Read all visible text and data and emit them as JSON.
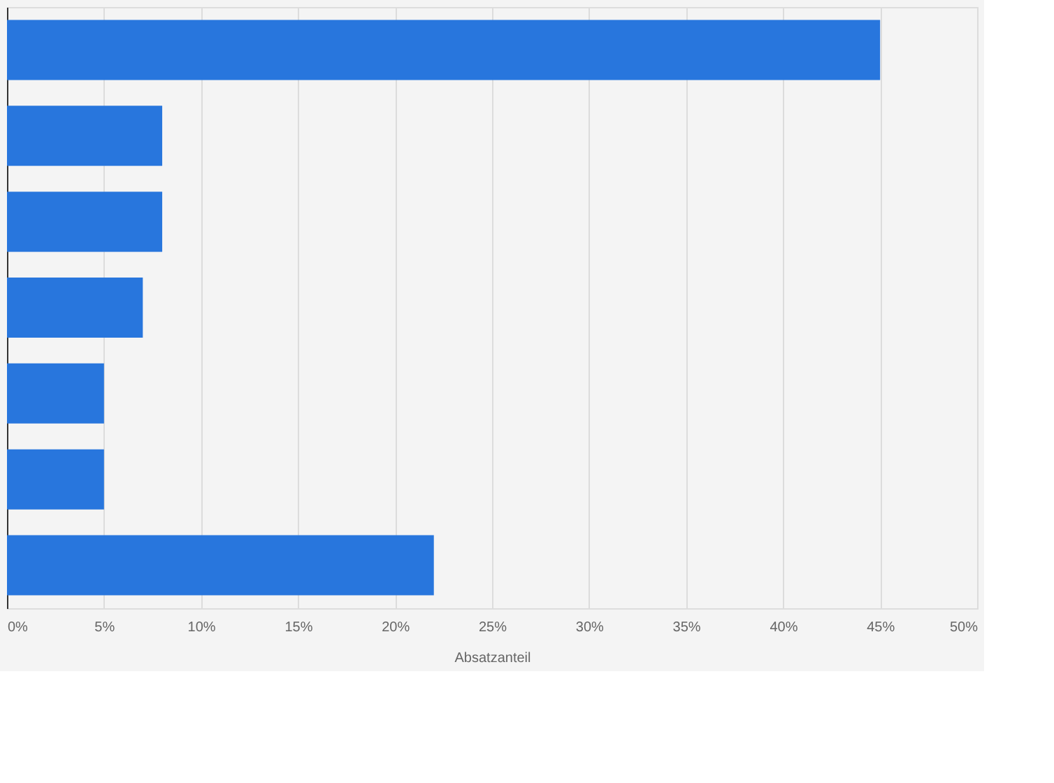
{
  "chart_data": {
    "type": "bar",
    "orientation": "horizontal",
    "categories": [
      null,
      null,
      null,
      null,
      null,
      null,
      null
    ],
    "values": [
      45,
      8,
      8,
      7,
      5,
      5,
      22
    ],
    "color": "#2876dd",
    "xlabel": "Absatzanteil",
    "xlim": [
      0,
      50
    ],
    "xticks": [
      {
        "value": 0,
        "label": "0%"
      },
      {
        "value": 5,
        "label": "5%"
      },
      {
        "value": 10,
        "label": "10%"
      },
      {
        "value": 15,
        "label": "15%"
      },
      {
        "value": 20,
        "label": "20%"
      },
      {
        "value": 25,
        "label": "25%"
      },
      {
        "value": 30,
        "label": "30%"
      },
      {
        "value": 35,
        "label": "35%"
      },
      {
        "value": 40,
        "label": "40%"
      },
      {
        "value": 45,
        "label": "45%"
      },
      {
        "value": 50,
        "label": "50%"
      }
    ],
    "grid": "x",
    "tick_labels": "x"
  }
}
